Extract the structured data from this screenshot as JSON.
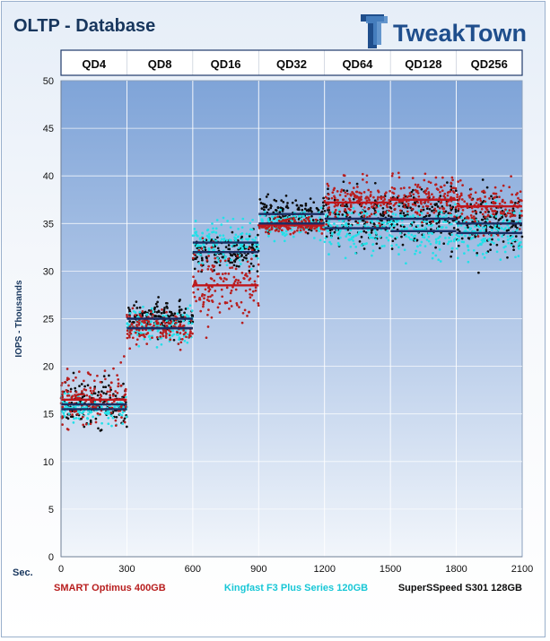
{
  "colors": {
    "smart": "#b81e1e",
    "kingfast": "#22e0e8",
    "superspeed": "#0c0c0c",
    "avg_red": "#c0161c",
    "avg_navy": "#1a2d64",
    "title": "#17365d",
    "brand": "#1f4e8c"
  },
  "logo": {
    "text": "TweakTown",
    "icon": "tt-logo-icon"
  },
  "chart_data": {
    "type": "scatter",
    "title": "OLTP - Database",
    "xlabel": "Sec.",
    "ylabel": "IOPS - Thousands",
    "xlim": [
      0,
      2100
    ],
    "ylim": [
      0,
      50
    ],
    "x_ticks": [
      0,
      300,
      600,
      900,
      1200,
      1500,
      1800,
      2100
    ],
    "y_ticks": [
      0,
      5,
      10,
      15,
      20,
      25,
      30,
      35,
      40,
      45,
      50
    ],
    "grid": true,
    "background": "blue-gradient",
    "phases": [
      "QD4",
      "QD8",
      "QD16",
      "QD32",
      "QD64",
      "QD128",
      "QD256"
    ],
    "phase_length_sec": 300,
    "legend_position": "bottom",
    "series": [
      {
        "name": "SMART Optimus 400GB",
        "color": "#b81e1e",
        "phase_center": [
          16.5,
          24.0,
          28.5,
          34.8,
          37.2,
          37.5,
          36.8
        ],
        "phase_spread": [
          2.5,
          1.5,
          3.5,
          0.6,
          1.8,
          1.8,
          2.0
        ],
        "phase_avg": [
          16.5,
          24.0,
          28.5,
          34.8,
          37.2,
          37.5,
          36.8
        ]
      },
      {
        "name": "Kingfast  F3 Plus Series 120GB",
        "color": "#22e0e8",
        "phase_center": [
          15.5,
          24.0,
          33.0,
          35.0,
          34.5,
          34.2,
          34.0
        ],
        "phase_spread": [
          1.2,
          1.5,
          1.8,
          1.2,
          2.0,
          2.2,
          2.2
        ],
        "phase_avg": [
          15.5,
          24.0,
          33.0,
          35.0,
          34.5,
          34.2,
          34.0
        ]
      },
      {
        "name": "SuperSSpeed  S301 128GB",
        "color": "#0c0c0c",
        "phase_center": [
          16.0,
          25.0,
          32.0,
          36.0,
          35.5,
          35.5,
          35.0
        ],
        "phase_spread": [
          2.0,
          1.5,
          1.8,
          1.5,
          2.5,
          2.5,
          2.5
        ],
        "phase_avg": [
          16.0,
          25.0,
          32.0,
          36.0,
          35.5,
          35.5,
          35.0
        ]
      }
    ]
  }
}
